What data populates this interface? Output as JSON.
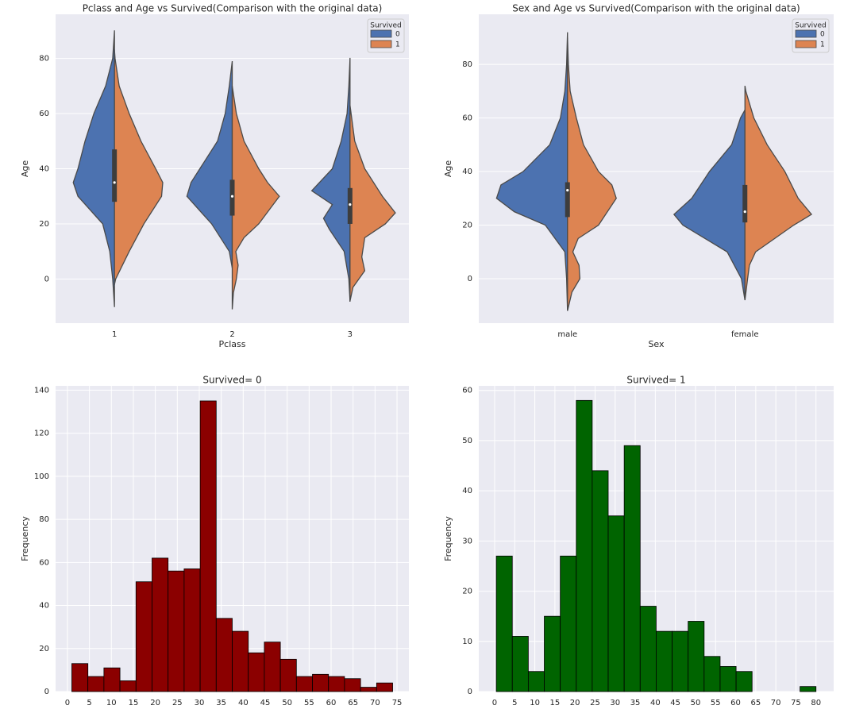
{
  "chart_data": [
    {
      "type": "violin",
      "title": "Pclass and Age vs Survived(Comparison with the original data)",
      "x_label": "Pclass",
      "y_label": "Age",
      "categories": [
        "1",
        "2",
        "3"
      ],
      "ylim": [
        -16,
        96
      ],
      "yticks": [
        0,
        20,
        40,
        60,
        80
      ],
      "grid": true,
      "legend_title": "Survived",
      "legend_position": "upper right",
      "series": [
        {
          "name": "0",
          "color": "#4c72b0",
          "profiles": [
            {
              "age": [
                -10,
                0,
                10,
                20,
                30,
                35,
                40,
                50,
                60,
                70,
                80,
                90
              ],
              "density": [
                0,
                0.03,
                0.08,
                0.2,
                0.62,
                0.7,
                0.62,
                0.5,
                0.35,
                0.15,
                0.03,
                0
              ]
            },
            {
              "age": [
                4,
                10,
                20,
                30,
                35,
                40,
                50,
                60,
                70,
                79
              ],
              "density": [
                0,
                0.05,
                0.35,
                0.77,
                0.7,
                0.55,
                0.25,
                0.12,
                0.05,
                0
              ]
            },
            {
              "age": [
                -8,
                0,
                10,
                18,
                22,
                27,
                32,
                40,
                50,
                60,
                70,
                80
              ],
              "density": [
                0,
                0.02,
                0.1,
                0.35,
                0.45,
                0.3,
                0.65,
                0.3,
                0.15,
                0.05,
                0.02,
                0
              ]
            }
          ]
        },
        {
          "name": "1",
          "color": "#dd8452",
          "profiles": [
            {
              "age": [
                -2,
                0,
                10,
                20,
                30,
                35,
                40,
                50,
                60,
                70,
                80,
                83
              ],
              "density": [
                0,
                0.02,
                0.25,
                0.5,
                0.8,
                0.82,
                0.7,
                0.45,
                0.25,
                0.08,
                0.01,
                0
              ]
            },
            {
              "age": [
                -11,
                -5,
                0,
                5,
                10,
                15,
                20,
                30,
                35,
                40,
                50,
                60,
                70
              ],
              "density": [
                0,
                0.02,
                0.07,
                0.1,
                0.06,
                0.2,
                0.45,
                0.8,
                0.6,
                0.45,
                0.2,
                0.07,
                0
              ]
            },
            {
              "age": [
                -8,
                -3,
                3,
                8,
                15,
                20,
                24,
                30,
                40,
                50,
                63
              ],
              "density": [
                0,
                0.05,
                0.25,
                0.2,
                0.25,
                0.6,
                0.77,
                0.55,
                0.25,
                0.08,
                0
              ]
            }
          ]
        }
      ],
      "boxes": [
        {
          "q1": 28,
          "median": 35,
          "q3": 47
        },
        {
          "q1": 23,
          "median": 30,
          "q3": 36
        },
        {
          "q1": 20,
          "median": 27,
          "q3": 33
        }
      ]
    },
    {
      "type": "violin",
      "title": "Sex and Age vs Survived(Comparison with the original data)",
      "x_label": "Sex",
      "y_label": "Age",
      "categories": [
        "male",
        "female"
      ],
      "ylim": [
        -16.6,
        98.7
      ],
      "yticks": [
        0,
        20,
        40,
        60,
        80
      ],
      "grid": true,
      "legend_title": "Survived",
      "legend_position": "upper right",
      "series": [
        {
          "name": "0",
          "color": "#4c72b0",
          "profiles": [
            {
              "age": [
                -12,
                0,
                10,
                20,
                25,
                30,
                35,
                40,
                50,
                60,
                70,
                80,
                92
              ],
              "density": [
                0,
                0.01,
                0.03,
                0.25,
                0.6,
                0.8,
                0.75,
                0.5,
                0.2,
                0.08,
                0.03,
                0.01,
                0
              ]
            },
            {
              "age": [
                -8,
                0,
                10,
                20,
                24,
                30,
                40,
                50,
                60,
                63
              ],
              "density": [
                0,
                0.04,
                0.2,
                0.7,
                0.8,
                0.6,
                0.4,
                0.15,
                0.05,
                0
              ]
            }
          ]
        },
        {
          "name": "1",
          "color": "#dd8452",
          "profiles": [
            {
              "age": [
                -12,
                -5,
                0,
                5,
                10,
                15,
                20,
                30,
                35,
                40,
                50,
                60,
                70,
                80,
                90
              ],
              "density": [
                0,
                0.05,
                0.14,
                0.13,
                0.06,
                0.12,
                0.35,
                0.55,
                0.5,
                0.35,
                0.18,
                0.1,
                0.03,
                0.01,
                0
              ]
            },
            {
              "age": [
                -8,
                0,
                5,
                10,
                20,
                24,
                30,
                40,
                50,
                60,
                70,
                72
              ],
              "density": [
                0,
                0.03,
                0.05,
                0.12,
                0.55,
                0.75,
                0.6,
                0.45,
                0.25,
                0.1,
                0.01,
                0
              ]
            }
          ]
        }
      ],
      "boxes": [
        {
          "q1": 23,
          "median": 33,
          "q3": 36
        },
        {
          "q1": 21,
          "median": 25,
          "q3": 35
        }
      ]
    },
    {
      "type": "histogram",
      "title": "Survived= 0",
      "y_label": "Frequency",
      "bins": [
        1,
        4.65,
        8.3,
        11.95,
        15.6,
        19.25,
        22.9,
        26.55,
        30.2,
        33.85,
        37.5,
        41.15,
        44.8,
        48.45,
        52.1,
        55.75,
        59.4,
        63.05,
        66.7,
        70.35,
        74
      ],
      "values": [
        13,
        7,
        11,
        5,
        51,
        62,
        56,
        57,
        135,
        34,
        28,
        18,
        23,
        15,
        7,
        8,
        7,
        6,
        2,
        4
      ],
      "color": "#8b0000",
      "edgecolor": "#000000",
      "xlim": [
        -2.7,
        77.7
      ],
      "xticks": [
        0,
        5,
        10,
        15,
        20,
        25,
        30,
        35,
        40,
        45,
        50,
        55,
        60,
        65,
        70,
        75
      ],
      "ylim": [
        0,
        142
      ],
      "yticks": [
        0,
        20,
        40,
        60,
        80,
        100,
        120,
        140
      ],
      "grid": true
    },
    {
      "type": "histogram",
      "title": "Survived= 1",
      "y_label": "Frequency",
      "bins": [
        0.42,
        4.4,
        8.38,
        12.36,
        16.34,
        20.32,
        24.29,
        28.27,
        32.25,
        36.23,
        40.21,
        44.19,
        48.17,
        52.15,
        56.13,
        60.11,
        64.09,
        68.07,
        72.05,
        76.02,
        80
      ],
      "values": [
        27,
        11,
        4,
        15,
        27,
        58,
        44,
        35,
        49,
        17,
        12,
        12,
        14,
        7,
        5,
        4,
        0,
        0,
        0,
        1
      ],
      "color": "#006400",
      "edgecolor": "#000000",
      "xlim": [
        -3.95,
        84.4
      ],
      "xticks": [
        0,
        5,
        10,
        15,
        20,
        25,
        30,
        35,
        40,
        45,
        50,
        55,
        60,
        65,
        70,
        75,
        80
      ],
      "ylim": [
        0,
        60.9
      ],
      "yticks": [
        0,
        10,
        20,
        30,
        40,
        50,
        60
      ],
      "grid": true
    }
  ]
}
